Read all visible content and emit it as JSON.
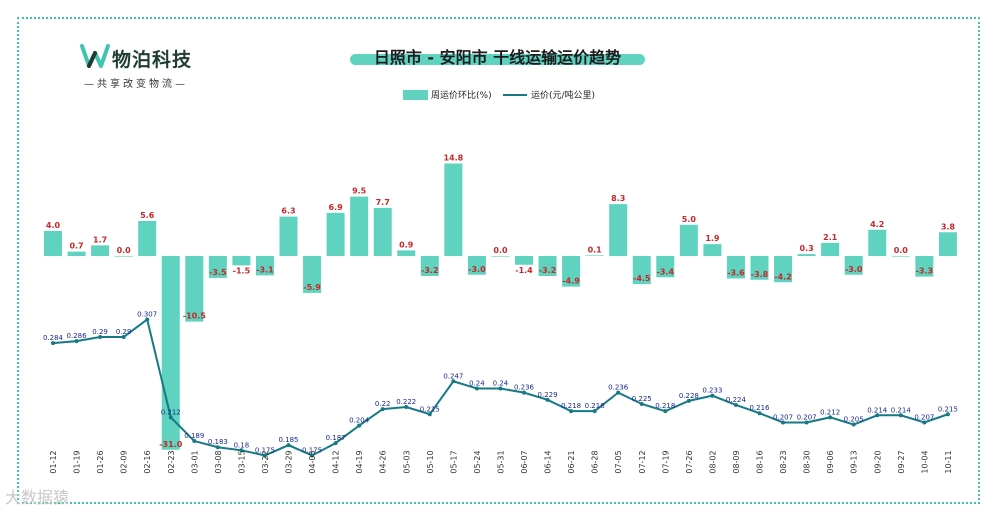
{
  "logo": {
    "name": "物泊科技",
    "slogan": "—共享改变物流—",
    "brand_color": "#3fc4ae"
  },
  "watermark": {
    "text": "大数据猿"
  },
  "chart_data": {
    "type": "bar+line",
    "title": "日照市 - 安阳市 干线运输运价趋势",
    "legend": {
      "placement": "top-center",
      "bar_series": "周运价环比(%)",
      "line_series": "运价(元/吨公里)"
    },
    "grid": false,
    "colors": {
      "bar": "#5fd3bf",
      "line": "#157a86",
      "bar_label": "#c62828",
      "line_label": "#1a2a8f"
    },
    "categories": [
      "01-12",
      "01-19",
      "01-26",
      "02-09",
      "02-16",
      "02-23",
      "03-01",
      "03-08",
      "03-15",
      "03-22",
      "03-29",
      "04-05",
      "04-12",
      "04-19",
      "04-26",
      "05-03",
      "05-10",
      "05-17",
      "05-24",
      "05-31",
      "06-07",
      "06-14",
      "06-21",
      "06-28",
      "07-05",
      "07-12",
      "07-19",
      "07-26",
      "08-02",
      "08-09",
      "08-16",
      "08-23",
      "08-30",
      "09-06",
      "09-13",
      "09-20",
      "09-27",
      "10-04",
      "10-11"
    ],
    "series": [
      {
        "name": "周运价环比(%)",
        "type": "bar",
        "values": [
          4.0,
          0.7,
          1.7,
          0.0,
          5.6,
          -31.0,
          -10.5,
          -3.5,
          -1.5,
          -3.1,
          6.3,
          -5.9,
          6.9,
          9.5,
          7.7,
          0.9,
          -3.2,
          14.8,
          -3.0,
          0.0,
          -1.4,
          -3.2,
          -4.9,
          0.1,
          8.3,
          -4.5,
          -3.4,
          5.0,
          1.9,
          -3.6,
          -3.8,
          -4.2,
          0.3,
          2.1,
          -3.0,
          4.2,
          0.0,
          -3.3,
          3.8
        ],
        "labels": [
          "4.0",
          "0.7",
          "1.7",
          "0.0",
          "5.6",
          "-31.0",
          "-10.5",
          "-3.5",
          "-1.5",
          "-3.1",
          "6.3",
          "-5.9",
          "6.9",
          "9.5",
          "7.7",
          "0.9",
          "-3.2",
          "14.8",
          "-3.0",
          "0.0",
          "-1.4",
          "-3.2",
          "-4.9",
          "0.1",
          "8.3",
          "-4.5",
          "-3.4",
          "5.0",
          "1.9",
          "-3.6",
          "-3.8",
          "-4.2",
          "0.3",
          "2.1",
          "-3.0",
          "4.2",
          "0.0",
          "-3.3",
          "3.8"
        ]
      },
      {
        "name": "运价(元/吨公里)",
        "type": "line",
        "values": [
          0.284,
          0.286,
          0.29,
          0.29,
          0.307,
          0.212,
          0.189,
          0.183,
          0.18,
          0.175,
          0.185,
          0.175,
          0.187,
          0.204,
          0.22,
          0.222,
          0.215,
          0.247,
          0.24,
          0.24,
          0.236,
          0.229,
          0.218,
          0.218,
          0.236,
          0.225,
          0.218,
          0.228,
          0.233,
          0.224,
          0.216,
          0.207,
          0.207,
          0.212,
          0.205,
          0.214,
          0.214,
          0.207,
          0.215
        ],
        "labels": [
          "0.284",
          "0.286",
          "0.29",
          "0.29",
          "0.307",
          "0.212",
          "0.189",
          "0.183",
          "0.18",
          "0.175",
          "0.185",
          "0.175",
          "0.187",
          "0.204",
          "0.22",
          "0.222",
          "0.215",
          "0.247",
          "0.24",
          "0.24",
          "0.236",
          "0.229",
          "0.218",
          "0.218",
          "0.236",
          "0.225",
          "0.218",
          "0.228",
          "0.233",
          "0.224",
          "0.216",
          "0.207",
          "0.207",
          "0.212",
          "0.205",
          "0.214",
          "0.214",
          "0.207",
          "0.215"
        ]
      }
    ]
  }
}
